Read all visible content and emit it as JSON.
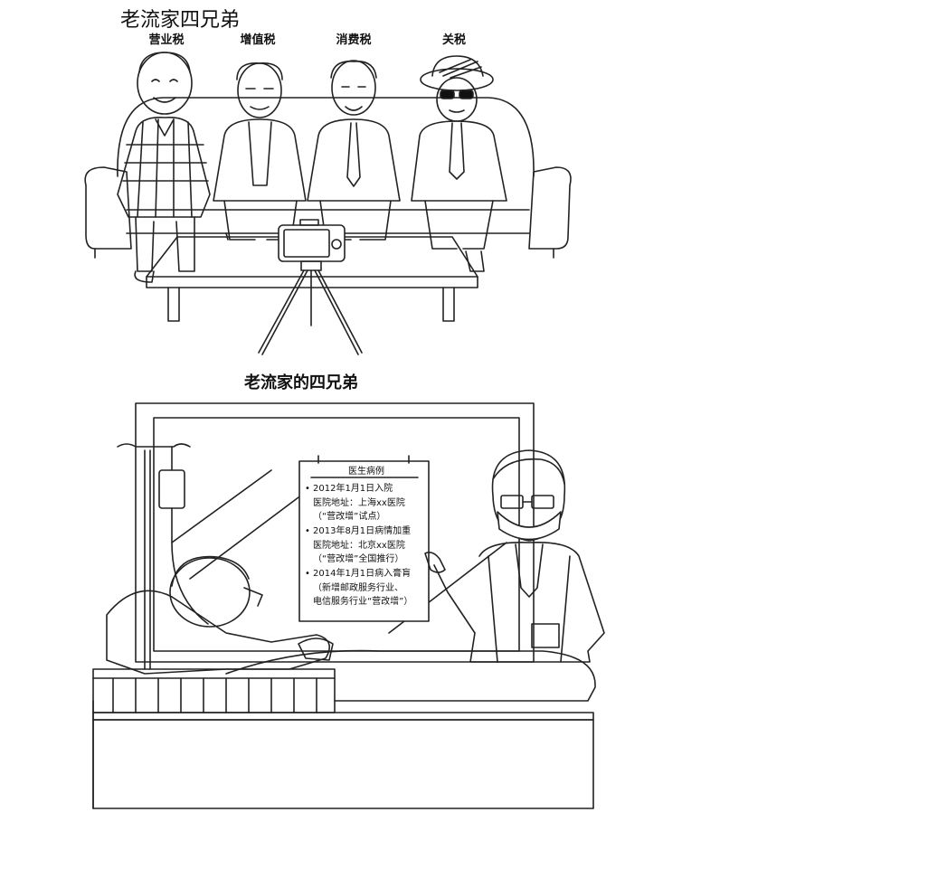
{
  "title": "老流家四兄弟",
  "brothers": [
    {
      "label": "营业税"
    },
    {
      "label": "增值税"
    },
    {
      "label": "消费税"
    },
    {
      "label": "关税"
    }
  ],
  "caption": "老流家的四兄弟",
  "medical_record": {
    "heading": "医生病例",
    "entries": [
      {
        "bullet": "•",
        "lines": [
          "2012年1月1日入院",
          "医院地址：上海xx医院",
          "（“营改增”试点）"
        ]
      },
      {
        "bullet": "•",
        "lines": [
          "2013年8月1日病情加重",
          "医院地址：北京xx医院",
          "（“营改增”全国推行）"
        ]
      },
      {
        "bullet": "•",
        "lines": [
          "2014年1月1日病入膏肓",
          "（新增邮政服务行业、",
          "电信服务行业“营改增”）"
        ]
      }
    ]
  },
  "icons": [
    "camera-icon",
    "tripod-icon",
    "iv-drip-icon",
    "hospital-bed-icon"
  ]
}
